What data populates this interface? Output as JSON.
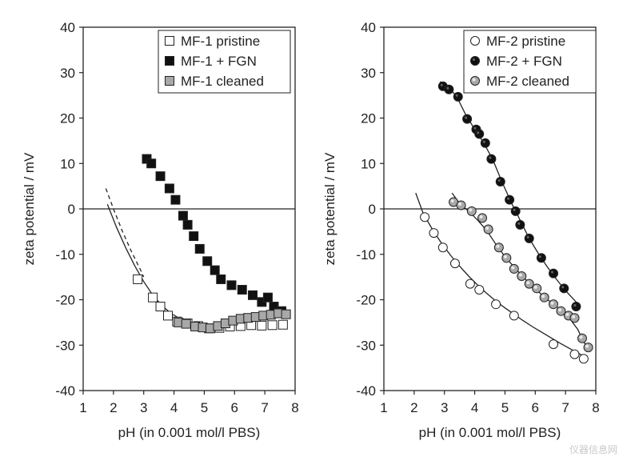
{
  "chart_data": [
    {
      "type": "scatter",
      "xlabel": "pH (in 0.001 mol/l PBS)",
      "ylabel": "zeta potential / mV",
      "xlim": [
        1,
        8
      ],
      "ylim": [
        -40,
        40
      ],
      "xticks": [
        1,
        2,
        3,
        4,
        5,
        6,
        7,
        8
      ],
      "yticks": [
        -40,
        -30,
        -20,
        -10,
        0,
        10,
        20,
        30,
        40
      ],
      "legend_position": "top-right",
      "zero_line": true,
      "series": [
        {
          "name": "MF-1 pristine",
          "marker": "square",
          "fill": "#ffffff",
          "points": [
            [
              2.8,
              -15.5
            ],
            [
              3.3,
              -19.5
            ],
            [
              3.55,
              -21.5
            ],
            [
              3.8,
              -23.5
            ],
            [
              4.1,
              -24.8
            ],
            [
              4.45,
              -25.2
            ],
            [
              4.8,
              -25.8
            ],
            [
              5.15,
              -26.3
            ],
            [
              5.5,
              -26.2
            ],
            [
              5.85,
              -25.9
            ],
            [
              6.2,
              -25.8
            ],
            [
              6.55,
              -25.6
            ],
            [
              6.9,
              -25.7
            ],
            [
              7.25,
              -25.6
            ],
            [
              7.6,
              -25.5
            ]
          ]
        },
        {
          "name": "MF-1 + FGN",
          "marker": "square",
          "fill": "#111111",
          "points": [
            [
              3.1,
              11
            ],
            [
              3.25,
              10
            ],
            [
              3.55,
              7.2
            ],
            [
              3.85,
              4.5
            ],
            [
              4.05,
              2
            ],
            [
              4.3,
              -1.5
            ],
            [
              4.45,
              -3.5
            ],
            [
              4.65,
              -6
            ],
            [
              4.85,
              -8.8
            ],
            [
              5.1,
              -11.5
            ],
            [
              5.35,
              -13.5
            ],
            [
              5.55,
              -15.5
            ],
            [
              5.9,
              -16.8
            ],
            [
              6.25,
              -17.8
            ],
            [
              6.6,
              -19
            ],
            [
              6.9,
              -20.5
            ],
            [
              7.1,
              -19.5
            ],
            [
              7.3,
              -21.5
            ],
            [
              7.55,
              -22.5
            ]
          ]
        },
        {
          "name": "MF-1 cleaned",
          "marker": "square",
          "fill": "#a8a8a8",
          "points": [
            [
              4.15,
              -25
            ],
            [
              4.4,
              -25.3
            ],
            [
              4.7,
              -25.9
            ],
            [
              4.95,
              -26.1
            ],
            [
              5.2,
              -26.3
            ],
            [
              5.45,
              -25.8
            ],
            [
              5.7,
              -25.2
            ],
            [
              5.95,
              -24.6
            ],
            [
              6.2,
              -24.2
            ],
            [
              6.45,
              -24
            ],
            [
              6.7,
              -23.8
            ],
            [
              6.95,
              -23.5
            ],
            [
              7.2,
              -23.3
            ],
            [
              7.45,
              -23
            ],
            [
              7.7,
              -23.2
            ]
          ]
        }
      ],
      "trendlines": [
        {
          "style": "solid",
          "points": [
            [
              1.8,
              1
            ],
            [
              2.1,
              -4
            ],
            [
              2.4,
              -8.5
            ],
            [
              2.7,
              -12.5
            ],
            [
              3.0,
              -16
            ],
            [
              3.3,
              -19
            ],
            [
              3.6,
              -21.3
            ],
            [
              3.9,
              -23
            ],
            [
              4.2,
              -24.2
            ],
            [
              4.5,
              -25
            ],
            [
              4.8,
              -25.5
            ],
            [
              5.1,
              -25.6
            ],
            [
              5.4,
              -25.5
            ],
            [
              5.7,
              -25.2
            ],
            [
              6.0,
              -24.8
            ],
            [
              6.3,
              -24.4
            ],
            [
              6.6,
              -24
            ],
            [
              6.9,
              -23.6
            ],
            [
              7.2,
              -23.3
            ],
            [
              7.5,
              -23
            ],
            [
              7.7,
              -22.9
            ]
          ]
        },
        {
          "style": "dashed",
          "points": [
            [
              1.75,
              4.5
            ],
            [
              2.0,
              0
            ],
            [
              2.3,
              -5
            ],
            [
              2.6,
              -9.5
            ],
            [
              2.9,
              -13.5
            ],
            [
              3.0,
              -15
            ]
          ]
        }
      ]
    },
    {
      "type": "scatter",
      "xlabel": "pH (in 0.001 mol/l PBS)",
      "ylabel": "zeta potential / mV",
      "xlim": [
        1,
        8
      ],
      "ylim": [
        -40,
        40
      ],
      "xticks": [
        1,
        2,
        3,
        4,
        5,
        6,
        7,
        8
      ],
      "yticks": [
        -40,
        -30,
        -20,
        -10,
        0,
        10,
        20,
        30,
        40
      ],
      "legend_position": "top-right",
      "zero_line": true,
      "series": [
        {
          "name": "MF-2 pristine",
          "marker": "circle",
          "fill": "#ffffff",
          "points": [
            [
              2.35,
              -1.8
            ],
            [
              2.65,
              -5.3
            ],
            [
              2.95,
              -8.5
            ],
            [
              3.35,
              -12
            ],
            [
              3.85,
              -16.5
            ],
            [
              4.15,
              -17.8
            ],
            [
              4.7,
              -21
            ],
            [
              5.3,
              -23.5
            ],
            [
              6.6,
              -29.8
            ],
            [
              7.3,
              -32
            ],
            [
              7.6,
              -33
            ]
          ]
        },
        {
          "name": "MF-2 + FGN",
          "marker": "circle",
          "fill": "#111111",
          "points": [
            [
              2.95,
              27
            ],
            [
              3.15,
              26.3
            ],
            [
              3.45,
              24.7
            ],
            [
              3.75,
              19.8
            ],
            [
              4.05,
              17.5
            ],
            [
              4.15,
              16.5
            ],
            [
              4.35,
              14.5
            ],
            [
              4.55,
              11
            ],
            [
              4.85,
              6
            ],
            [
              5.15,
              2
            ],
            [
              5.35,
              -0.5
            ],
            [
              5.5,
              -3.5
            ],
            [
              5.8,
              -6.5
            ],
            [
              6.2,
              -10.8
            ],
            [
              6.6,
              -14.2
            ],
            [
              6.95,
              -17.5
            ],
            [
              7.35,
              -21.5
            ]
          ]
        },
        {
          "name": "MF-2 cleaned",
          "marker": "circle",
          "fill": "#a8a8a8",
          "points": [
            [
              3.3,
              1.5
            ],
            [
              3.55,
              0.8
            ],
            [
              3.9,
              -0.5
            ],
            [
              4.25,
              -2
            ],
            [
              4.45,
              -4.5
            ],
            [
              4.8,
              -8.5
            ],
            [
              5.05,
              -10.8
            ],
            [
              5.3,
              -13.2
            ],
            [
              5.55,
              -14.8
            ],
            [
              5.8,
              -16.5
            ],
            [
              6.05,
              -17.5
            ],
            [
              6.3,
              -19.5
            ],
            [
              6.6,
              -21
            ],
            [
              6.85,
              -22.5
            ],
            [
              7.1,
              -23.5
            ],
            [
              7.3,
              -24
            ],
            [
              7.55,
              -28.5
            ],
            [
              7.75,
              -30.5
            ]
          ]
        }
      ],
      "trendlines": [
        {
          "style": "solid",
          "points": [
            [
              2.05,
              3.5
            ],
            [
              2.3,
              -1
            ],
            [
              2.6,
              -4.5
            ],
            [
              2.9,
              -7.5
            ],
            [
              3.2,
              -10.2
            ],
            [
              3.5,
              -12.6
            ],
            [
              3.8,
              -14.8
            ],
            [
              4.1,
              -16.8
            ],
            [
              4.4,
              -18.6
            ],
            [
              4.7,
              -20.3
            ],
            [
              5.0,
              -21.8
            ],
            [
              5.3,
              -23.2
            ],
            [
              5.6,
              -24.6
            ],
            [
              5.9,
              -25.9
            ],
            [
              6.2,
              -27.1
            ],
            [
              6.5,
              -28.3
            ],
            [
              6.8,
              -29.5
            ],
            [
              7.1,
              -30.6
            ],
            [
              7.4,
              -31.7
            ],
            [
              7.65,
              -32.6
            ]
          ]
        },
        {
          "style": "solid",
          "points": [
            [
              2.85,
              28
            ],
            [
              3.1,
              27
            ],
            [
              3.4,
              24.8
            ],
            [
              3.7,
              20.8
            ],
            [
              4.0,
              17.5
            ],
            [
              4.3,
              14.5
            ],
            [
              4.6,
              10.8
            ],
            [
              4.9,
              6
            ],
            [
              5.2,
              1.5
            ],
            [
              5.5,
              -2.5
            ],
            [
              5.8,
              -6.5
            ],
            [
              6.1,
              -9.8
            ],
            [
              6.4,
              -12.8
            ],
            [
              6.7,
              -15.5
            ],
            [
              7.0,
              -18
            ],
            [
              7.35,
              -20.5
            ]
          ]
        },
        {
          "style": "solid",
          "points": [
            [
              3.25,
              3.5
            ],
            [
              3.5,
              1.2
            ],
            [
              3.8,
              -0.5
            ],
            [
              4.1,
              -2.5
            ],
            [
              4.4,
              -4.8
            ],
            [
              4.7,
              -7.8
            ],
            [
              5.0,
              -10.5
            ],
            [
              5.3,
              -12.8
            ],
            [
              5.6,
              -15
            ],
            [
              5.9,
              -17
            ],
            [
              6.2,
              -18.8
            ],
            [
              6.5,
              -20.5
            ],
            [
              6.8,
              -22
            ],
            [
              7.1,
              -23.8
            ],
            [
              7.4,
              -26.5
            ],
            [
              7.6,
              -29.2
            ],
            [
              7.75,
              -31
            ]
          ]
        }
      ]
    }
  ],
  "watermark_text": "仪器信息网"
}
